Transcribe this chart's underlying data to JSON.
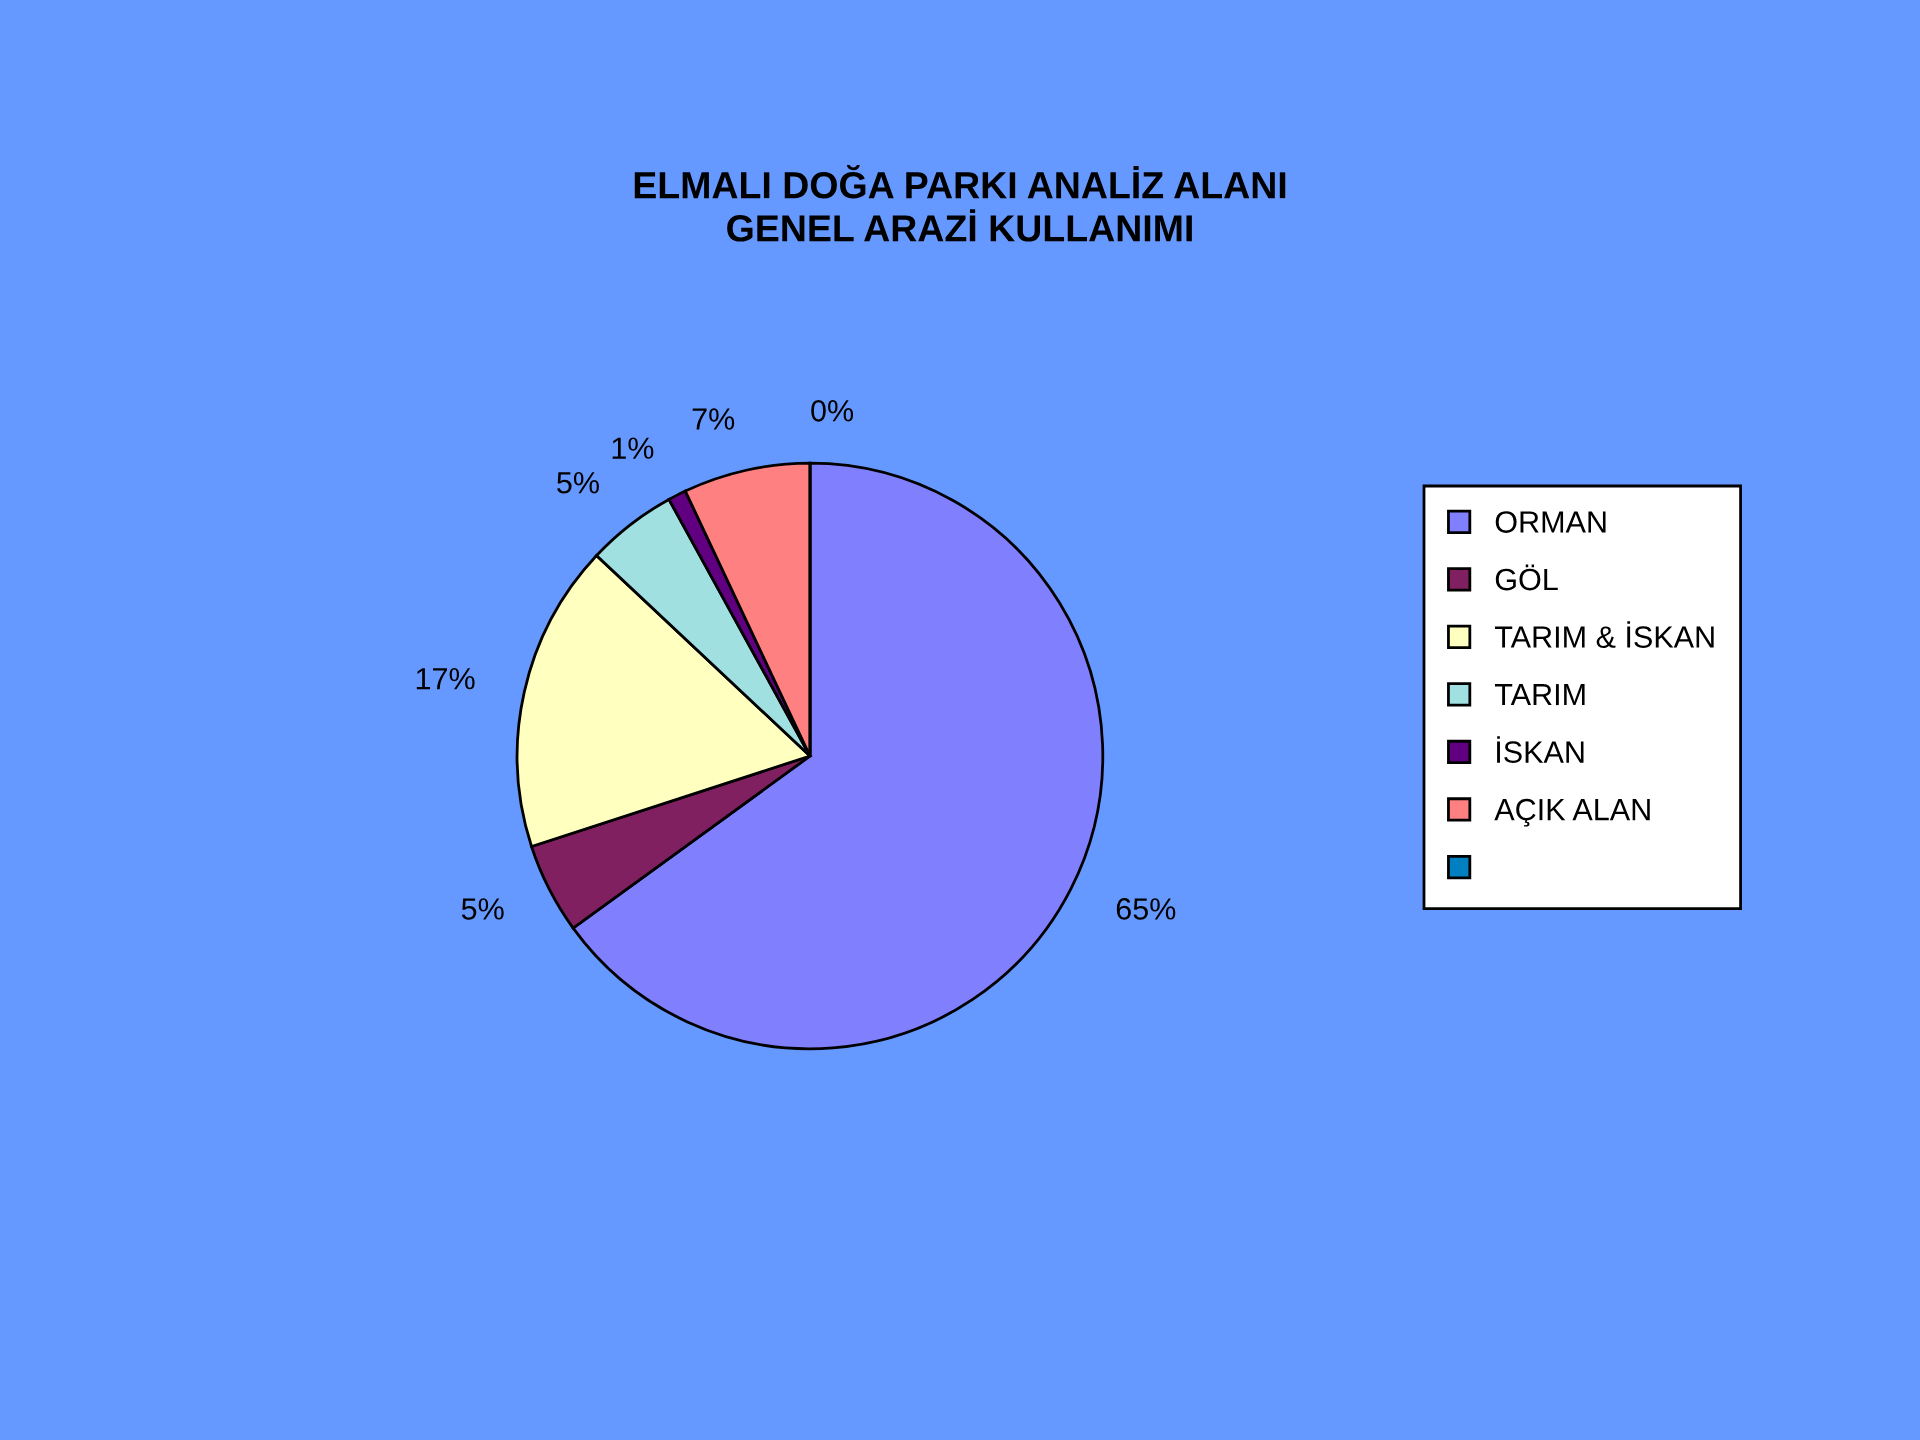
{
  "chart_data": {
    "type": "pie",
    "title": "ELMALI DOĞA PARKI ANALİZ ALANI\nGENEL ARAZİ KULLANIMI",
    "categories": [
      "ORMAN",
      "GÖL",
      "TARIM & İSKAN",
      "TARIM",
      "İSKAN",
      "AÇIK ALAN",
      null
    ],
    "values": [
      65,
      5,
      17,
      5,
      1,
      7,
      0
    ],
    "value_labels": [
      "65%",
      "5%",
      "17%",
      "5%",
      "1%",
      "7%",
      "0%"
    ],
    "colors": [
      "#8080ff",
      "#802060",
      "#ffffc0",
      "#a0e0e0",
      "#600080",
      "#ff8080",
      "#0080c0"
    ],
    "legend": "right"
  }
}
